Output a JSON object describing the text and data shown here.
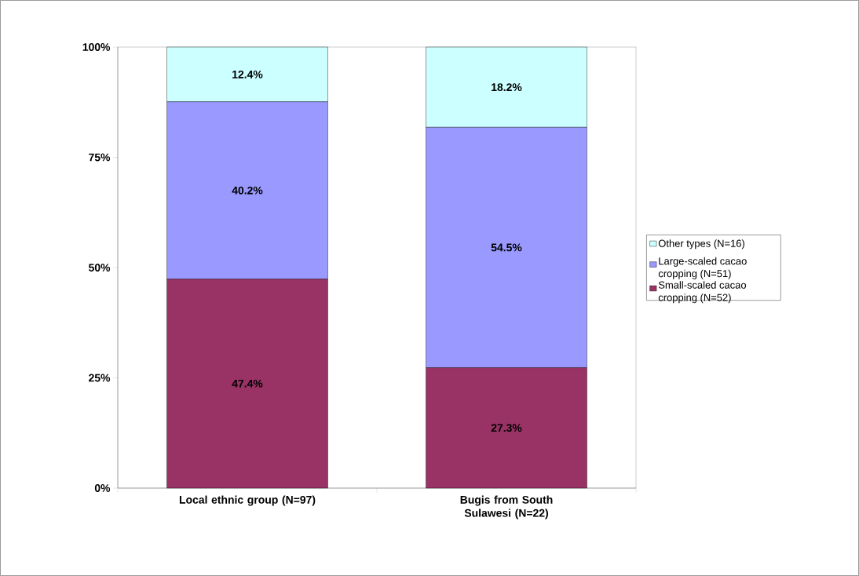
{
  "chart_data": {
    "type": "bar",
    "stacked": true,
    "categories": [
      "Local ethnic group (N=97)",
      "Bugis from South Sulawesi (N=22)"
    ],
    "series": [
      {
        "name": "Small-scaled cacao cropping (N=52)",
        "color": "#993366",
        "values": [
          47.4,
          27.3
        ],
        "value_labels": [
          "47.4%",
          "27.3%"
        ]
      },
      {
        "name": "Large-scaled cacao cropping (N=51)",
        "color": "#9999ff",
        "values": [
          40.2,
          54.5
        ],
        "value_labels": [
          "40.2%",
          "54.5%"
        ]
      },
      {
        "name": "Other types (N=16)",
        "color": "#ccffff",
        "values": [
          12.4,
          18.2
        ],
        "value_labels": [
          "12.4%",
          "18.2%"
        ]
      }
    ],
    "ylim": [
      0,
      100
    ],
    "yticks": [
      {
        "value": 0,
        "label": "0%"
      },
      {
        "value": 25,
        "label": "25%"
      },
      {
        "value": 50,
        "label": "50%"
      },
      {
        "value": 75,
        "label": "75%"
      },
      {
        "value": 100,
        "label": "100%"
      }
    ],
    "legend": "right",
    "grid": false
  }
}
